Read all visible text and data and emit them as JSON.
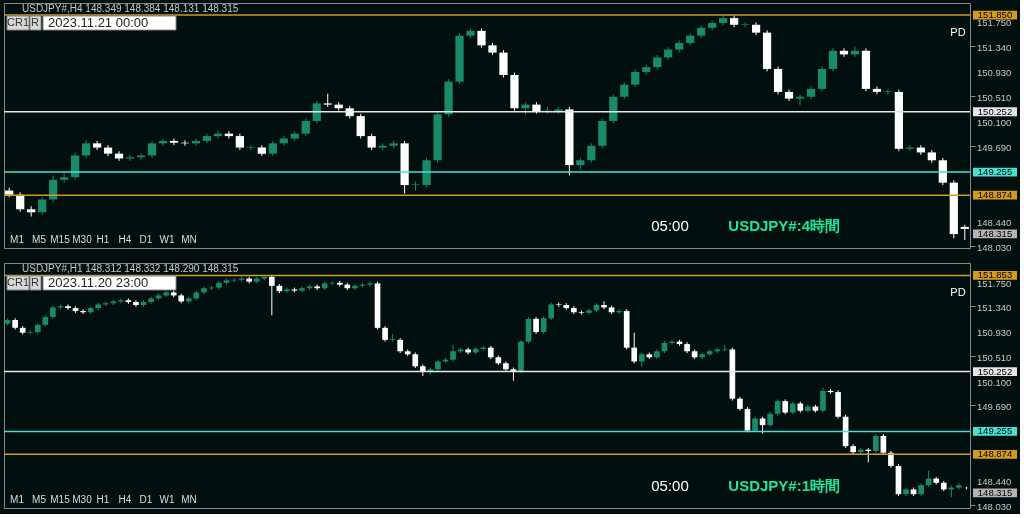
{
  "chart_data": [
    {
      "type": "candlestick",
      "title": "USDJPY#,H4 148.349 148.384 148.131 148.315",
      "annotations": [
        "CR1",
        "R",
        "2023.11.21 00:00",
        "M1",
        "M5",
        "M15",
        "M30",
        "H1",
        "H4",
        "D1",
        "W1",
        "MN",
        "PD",
        "05:00",
        "USDJPY#:4時間",
        "148.315"
      ],
      "colors": [
        "#ffffff",
        "#ffffff",
        "#ffffff",
        "#1a8a6c",
        "#1a8a6c",
        "#1a8a6c",
        "#1a8a6c",
        "#1a8a6c",
        "#ffffff",
        "#ffffff",
        "#ffffff",
        "#1a8a6c",
        "#1a8a6c",
        "#1a8a6c",
        "#1a8a6c",
        "#ffffff",
        "#ffffff",
        "#1a8a6c",
        "#1a8a6c",
        "#1a8a6c",
        "#ffffff",
        "#ffffff",
        "#1a8a6c",
        "#ffffff",
        "#1a8a6c",
        "#1a8a6c",
        "#1a8a6c",
        "#1a8a6c",
        "#1a8a6c",
        "#ffffff",
        "#ffffff",
        "#ffffff",
        "#ffffff",
        "#ffffff",
        "#1a8a6c",
        "#1a8a6c",
        "#ffffff",
        "#1a8a6c",
        "#1a8a6c",
        "#1a8a6c",
        "#1a8a6c",
        "#1a8a6c",
        "#1a8a6c",
        "#ffffff",
        "#ffffff",
        "#ffffff",
        "#ffffff",
        "#1a8a6c",
        "#ffffff",
        "#1a8a6c",
        "#1a8a6c",
        "#ffffff",
        "#1a8a6c",
        "#1a8a6c",
        "#1a8a6c",
        "#1a8a6c",
        "#1a8a6c",
        "#1a8a6c",
        "#1a8a6c",
        "#1a8a6c",
        "#1a8a6c",
        "#1a8a6c",
        "#1a8a6c",
        "#1a8a6c",
        "#1a8a6c",
        "#1a8a6c",
        "#ffffff",
        "#1a8a6c",
        "#ffffff",
        "#ffffff",
        "#ffffff",
        "#ffffff",
        "#1a8a6c",
        "#1a8a6c",
        "#1a8a6c",
        "#1a8a6c",
        "#ffffff",
        "#1a8a6c",
        "#ffffff",
        "#ffffff",
        "#1a8a6c",
        "#ffffff",
        "#1a8a6c",
        "#ffffff",
        "#ffffff",
        "#ffffff",
        "#ffffff",
        "#ffffff"
      ],
      "ylim": [
        148.0,
        152.05
      ],
      "yticks": [
        {
          "value": 151.75,
          "label": "151.750"
        },
        {
          "value": 151.34,
          "label": "151.340"
        },
        {
          "value": 150.93,
          "label": "150.930"
        },
        {
          "value": 150.51,
          "label": "150.510"
        },
        {
          "value": 150.1,
          "label": "150.100"
        },
        {
          "value": 149.69,
          "label": "149.690"
        },
        {
          "value": 148.44,
          "label": "148.440"
        },
        {
          "value": 148.03,
          "label": "148.030"
        }
      ],
      "ref_lines": [
        {
          "axis": "y",
          "value": 151.85,
          "label": "151.850",
          "color": "#d49a1e"
        },
        {
          "axis": "y",
          "value": 150.252,
          "label": "150.252",
          "color": "#e6e6e6"
        },
        {
          "axis": "y",
          "value": 149.255,
          "label": "149.255",
          "color": "#48e0d0"
        },
        {
          "axis": "y",
          "value": 148.874,
          "label": "148.874",
          "color": "#d49a1e"
        }
      ],
      "ohlc": [
        [
          148.95,
          149.0,
          148.84,
          148.88
        ],
        [
          148.88,
          148.92,
          148.6,
          148.64
        ],
        [
          148.64,
          148.69,
          148.52,
          148.59
        ],
        [
          148.59,
          148.84,
          148.55,
          148.8
        ],
        [
          148.8,
          149.2,
          148.76,
          149.13
        ],
        [
          149.13,
          149.24,
          149.08,
          149.17
        ],
        [
          149.17,
          149.58,
          149.13,
          149.53
        ],
        [
          149.53,
          149.78,
          149.49,
          149.73
        ],
        [
          149.73,
          149.77,
          149.62,
          149.66
        ],
        [
          149.66,
          149.7,
          149.52,
          149.56
        ],
        [
          149.56,
          149.6,
          149.44,
          149.48
        ],
        [
          149.48,
          149.54,
          149.44,
          149.5
        ],
        [
          149.5,
          149.57,
          149.46,
          149.53
        ],
        [
          149.53,
          149.77,
          149.49,
          149.73
        ],
        [
          149.73,
          149.81,
          149.69,
          149.77
        ],
        [
          149.77,
          149.81,
          149.7,
          149.74
        ],
        [
          149.74,
          149.78,
          149.69,
          149.73
        ],
        [
          149.73,
          149.81,
          149.69,
          149.77
        ],
        [
          149.77,
          149.89,
          149.73,
          149.85
        ],
        [
          149.85,
          149.93,
          149.81,
          149.89
        ],
        [
          149.89,
          149.93,
          149.81,
          149.85
        ],
        [
          149.85,
          149.89,
          149.62,
          149.66
        ],
        [
          149.66,
          149.7,
          149.62,
          149.67
        ],
        [
          149.66,
          149.7,
          149.52,
          149.56
        ],
        [
          149.56,
          149.77,
          149.52,
          149.73
        ],
        [
          149.73,
          149.85,
          149.69,
          149.81
        ],
        [
          149.81,
          149.93,
          149.77,
          149.89
        ],
        [
          149.89,
          150.14,
          149.85,
          150.1
        ],
        [
          150.1,
          150.43,
          150.06,
          150.39
        ],
        [
          150.39,
          150.55,
          150.33,
          150.37
        ],
        [
          150.37,
          150.41,
          150.27,
          150.31
        ],
        [
          150.31,
          150.35,
          150.14,
          150.18
        ],
        [
          150.18,
          150.22,
          149.81,
          149.85
        ],
        [
          149.85,
          149.89,
          149.62,
          149.66
        ],
        [
          149.66,
          149.73,
          149.62,
          149.69
        ],
        [
          149.69,
          149.77,
          149.65,
          149.73
        ],
        [
          149.73,
          149.77,
          148.9,
          149.04
        ],
        [
          149.04,
          149.1,
          148.95,
          149.05
        ],
        [
          149.04,
          149.49,
          149.0,
          149.45
        ],
        [
          149.45,
          150.25,
          149.41,
          150.21
        ],
        [
          150.21,
          150.79,
          150.17,
          150.75
        ],
        [
          150.75,
          151.55,
          150.71,
          151.51
        ],
        [
          151.51,
          151.63,
          151.47,
          151.59
        ],
        [
          151.59,
          151.63,
          151.31,
          151.35
        ],
        [
          151.35,
          151.39,
          151.19,
          151.23
        ],
        [
          151.23,
          151.27,
          150.82,
          150.86
        ],
        [
          150.86,
          150.9,
          150.27,
          150.31
        ],
        [
          150.31,
          150.41,
          150.2,
          150.37
        ],
        [
          150.37,
          150.41,
          150.22,
          150.26
        ],
        [
          150.26,
          150.33,
          150.22,
          150.27
        ],
        [
          150.26,
          150.33,
          150.22,
          150.29
        ],
        [
          150.29,
          150.33,
          149.2,
          149.37
        ],
        [
          149.37,
          149.49,
          149.3,
          149.45
        ],
        [
          149.45,
          149.73,
          149.41,
          149.69
        ],
        [
          149.69,
          150.14,
          149.65,
          150.1
        ],
        [
          150.1,
          150.54,
          150.06,
          150.5
        ],
        [
          150.5,
          150.74,
          150.46,
          150.7
        ],
        [
          150.7,
          150.95,
          150.66,
          150.91
        ],
        [
          150.91,
          151.03,
          150.87,
          150.99
        ],
        [
          150.99,
          151.19,
          150.95,
          151.15
        ],
        [
          151.15,
          151.32,
          151.11,
          151.28
        ],
        [
          151.28,
          151.43,
          151.24,
          151.39
        ],
        [
          151.39,
          151.55,
          151.35,
          151.51
        ],
        [
          151.51,
          151.68,
          151.47,
          151.64
        ],
        [
          151.64,
          151.76,
          151.6,
          151.72
        ],
        [
          151.72,
          151.84,
          151.68,
          151.8
        ],
        [
          151.8,
          151.84,
          151.65,
          151.69
        ],
        [
          151.69,
          151.73,
          151.65,
          151.7
        ],
        [
          151.69,
          151.73,
          151.52,
          151.56
        ],
        [
          151.56,
          151.6,
          150.92,
          150.96
        ],
        [
          150.96,
          151.0,
          150.54,
          150.58
        ],
        [
          150.58,
          150.62,
          150.43,
          150.47
        ],
        [
          150.47,
          150.54,
          150.36,
          150.5
        ],
        [
          150.5,
          150.67,
          150.46,
          150.63
        ],
        [
          150.63,
          151.0,
          150.59,
          150.96
        ],
        [
          150.96,
          151.3,
          150.92,
          151.26
        ],
        [
          151.26,
          151.3,
          151.16,
          151.2
        ],
        [
          151.2,
          151.33,
          151.16,
          151.26
        ],
        [
          151.26,
          151.3,
          150.59,
          150.63
        ],
        [
          150.63,
          150.67,
          150.54,
          150.58
        ],
        [
          150.58,
          150.62,
          150.54,
          150.59
        ],
        [
          150.58,
          150.62,
          149.6,
          149.64
        ],
        [
          149.64,
          149.7,
          149.6,
          149.66
        ],
        [
          149.66,
          149.7,
          149.54,
          149.58
        ],
        [
          149.58,
          149.62,
          149.41,
          149.45
        ],
        [
          149.45,
          149.49,
          149.04,
          149.08
        ],
        [
          149.08,
          149.12,
          148.16,
          148.23
        ],
        [
          148.349,
          148.384,
          148.131,
          148.315
        ]
      ]
    },
    {
      "type": "candlestick",
      "title": "USDJPY#,H1 148.312 148.332 148.290 148.315",
      "annotations": [
        "CR1",
        "R",
        "2023.11.20 23:00",
        "M1",
        "M5",
        "M15",
        "M30",
        "H1",
        "H4",
        "D1",
        "W1",
        "MN",
        "PD",
        "05:00",
        "USDJPY#:1時間",
        "148.315"
      ],
      "colors": [
        "#1a8a6c",
        "#ffffff",
        "#ffffff",
        "#1a8a6c",
        "#1a8a6c",
        "#1a8a6c",
        "#1a8a6c",
        "#1a8a6c",
        "#ffffff",
        "#ffffff",
        "#ffffff",
        "#1a8a6c",
        "#1a8a6c",
        "#1a8a6c",
        "#1a8a6c",
        "#1a8a6c",
        "#ffffff",
        "#ffffff",
        "#1a8a6c",
        "#1a8a6c",
        "#1a8a6c",
        "#1a8a6c",
        "#ffffff",
        "#ffffff",
        "#1a8a6c",
        "#1a8a6c",
        "#1a8a6c",
        "#1a8a6c",
        "#1a8a6c",
        "#1a8a6c",
        "#1a8a6c",
        "#1a8a6c",
        "#ffffff",
        "#1a8a6c",
        "#1a8a6c",
        "#ffffff",
        "#ffffff",
        "#1a8a6c",
        "#ffffff",
        "#1a8a6c",
        "#1a8a6c",
        "#ffffff",
        "#1a8a6c",
        "#1a8a6c",
        "#ffffff",
        "#ffffff",
        "#1a8a6c",
        "#1a8a6c",
        "#1a8a6c",
        "#ffffff",
        "#ffffff",
        "#1a8a6c",
        "#ffffff",
        "#ffffff",
        "#ffffff",
        "#ffffff",
        "#1a8a6c",
        "#1a8a6c",
        "#1a8a6c",
        "#1a8a6c",
        "#1a8a6c",
        "#ffffff",
        "#1a8a6c",
        "#1a8a6c",
        "#ffffff",
        "#ffffff",
        "#ffffff",
        "#ffffff",
        "#1a8a6c",
        "#1a8a6c",
        "#ffffff",
        "#1a8a6c",
        "#1a8a6c",
        "#ffffff",
        "#ffffff",
        "#ffffff",
        "#ffffff",
        "#1a8a6c",
        "#1a8a6c",
        "#ffffff",
        "#ffffff",
        "#1a8a6c",
        "#ffffff",
        "#ffffff",
        "#1a8a6c",
        "#ffffff",
        "#1a8a6c",
        "#1a8a6c",
        "#1a8a6c",
        "#ffffff",
        "#ffffff",
        "#ffffff",
        "#1a8a6c",
        "#1a8a6c",
        "#1a8a6c",
        "#1a8a6c",
        "#ffffff",
        "#ffffff",
        "#ffffff",
        "#1a8a6c",
        "#ffffff",
        "#1a8a6c",
        "#1a8a6c",
        "#ffffff",
        "#1a8a6c",
        "#ffffff",
        "#1a8a6c",
        "#ffffff",
        "#1a8a6c",
        "#ffffff",
        "#ffffff",
        "#ffffff",
        "#ffffff",
        "#1a8a6c",
        "#ffffff",
        "#1a8a6c",
        "#ffffff",
        "#ffffff",
        "#ffffff",
        "#1a8a6c",
        "#ffffff",
        "#1a8a6c",
        "#1a8a6c",
        "#ffffff",
        "#ffffff",
        "#1a8a6c",
        "#1a8a6c",
        "#ffffff"
      ],
      "ylim": [
        147.98,
        152.06
      ],
      "yticks": [
        {
          "value": 151.75,
          "label": "151.750"
        },
        {
          "value": 151.34,
          "label": "151.340"
        },
        {
          "value": 150.93,
          "label": "150.930"
        },
        {
          "value": 150.51,
          "label": "150.510"
        },
        {
          "value": 150.1,
          "label": "150.100"
        },
        {
          "value": 149.69,
          "label": "149.690"
        },
        {
          "value": 148.44,
          "label": "148.440"
        },
        {
          "value": 148.03,
          "label": "148.030"
        }
      ],
      "ref_lines": [
        {
          "axis": "y",
          "value": 151.853,
          "label": "151.853",
          "color": "#d49a1e"
        },
        {
          "axis": "y",
          "value": 150.252,
          "label": "150.252",
          "color": "#e6e6e6"
        },
        {
          "axis": "y",
          "value": 149.255,
          "label": "149.255",
          "color": "#48e0d0"
        },
        {
          "axis": "y",
          "value": 148.874,
          "label": "148.874",
          "color": "#d49a1e"
        }
      ],
      "ohlc": [
        [
          151.05,
          151.14,
          151.02,
          151.11
        ],
        [
          151.11,
          151.14,
          150.95,
          150.98
        ],
        [
          150.98,
          151.01,
          150.87,
          150.9
        ],
        [
          150.9,
          150.94,
          150.87,
          150.91
        ],
        [
          150.91,
          151.06,
          150.88,
          151.03
        ],
        [
          151.03,
          151.19,
          151.0,
          151.16
        ],
        [
          151.16,
          151.35,
          151.13,
          151.32
        ],
        [
          151.32,
          151.37,
          151.29,
          151.34
        ],
        [
          151.34,
          151.37,
          151.28,
          151.31
        ],
        [
          151.31,
          151.34,
          151.23,
          151.26
        ],
        [
          151.26,
          151.29,
          151.21,
          151.24
        ],
        [
          151.24,
          151.34,
          151.21,
          151.31
        ],
        [
          151.31,
          151.4,
          151.28,
          151.37
        ],
        [
          151.37,
          151.42,
          151.34,
          151.39
        ],
        [
          151.39,
          151.45,
          151.36,
          151.42
        ],
        [
          151.42,
          151.47,
          151.39,
          151.44
        ],
        [
          151.44,
          151.47,
          151.38,
          151.41
        ],
        [
          151.41,
          151.44,
          151.33,
          151.36
        ],
        [
          151.36,
          151.44,
          151.33,
          151.41
        ],
        [
          151.41,
          151.5,
          151.38,
          151.47
        ],
        [
          151.47,
          151.55,
          151.44,
          151.52
        ],
        [
          151.52,
          151.6,
          151.49,
          151.57
        ],
        [
          151.57,
          151.6,
          151.49,
          151.52
        ],
        [
          151.52,
          151.55,
          151.39,
          151.42
        ],
        [
          151.42,
          151.5,
          151.39,
          151.47
        ],
        [
          151.47,
          151.6,
          151.44,
          151.57
        ],
        [
          151.57,
          151.67,
          151.54,
          151.64
        ],
        [
          151.64,
          151.68,
          151.61,
          151.65
        ],
        [
          151.65,
          151.76,
          151.62,
          151.73
        ],
        [
          151.73,
          151.8,
          151.7,
          151.77
        ],
        [
          151.77,
          151.81,
          151.74,
          151.78
        ],
        [
          151.78,
          151.83,
          151.75,
          151.8
        ],
        [
          151.8,
          151.83,
          151.72,
          151.75
        ],
        [
          151.75,
          151.83,
          151.72,
          151.8
        ],
        [
          151.8,
          151.86,
          151.77,
          151.83
        ],
        [
          151.83,
          151.86,
          151.19,
          151.68
        ],
        [
          151.68,
          151.71,
          151.56,
          151.59
        ],
        [
          151.59,
          151.65,
          151.56,
          151.62
        ],
        [
          151.62,
          151.65,
          151.57,
          151.6
        ],
        [
          151.6,
          151.67,
          151.57,
          151.64
        ],
        [
          151.64,
          151.7,
          151.61,
          151.67
        ],
        [
          151.67,
          151.7,
          151.61,
          151.64
        ],
        [
          151.64,
          151.75,
          151.61,
          151.72
        ],
        [
          151.72,
          151.76,
          151.69,
          151.73
        ],
        [
          151.73,
          151.76,
          151.67,
          151.7
        ],
        [
          151.7,
          151.73,
          151.61,
          151.64
        ],
        [
          151.64,
          151.71,
          151.61,
          151.68
        ],
        [
          151.68,
          151.73,
          151.65,
          151.7
        ],
        [
          151.7,
          151.75,
          151.67,
          151.72
        ],
        [
          151.72,
          151.75,
          150.95,
          150.98
        ],
        [
          150.98,
          151.01,
          150.75,
          150.78
        ],
        [
          150.78,
          150.88,
          150.75,
          150.79
        ],
        [
          150.78,
          150.81,
          150.56,
          150.59
        ],
        [
          150.59,
          150.62,
          150.51,
          150.54
        ],
        [
          150.54,
          150.57,
          150.31,
          150.34
        ],
        [
          150.34,
          150.37,
          150.18,
          150.26
        ],
        [
          150.26,
          150.32,
          150.2,
          150.29
        ],
        [
          150.29,
          150.45,
          150.26,
          150.42
        ],
        [
          150.42,
          150.48,
          150.39,
          150.45
        ],
        [
          150.45,
          150.7,
          150.42,
          150.59
        ],
        [
          150.59,
          150.65,
          150.56,
          150.62
        ],
        [
          150.62,
          150.65,
          150.54,
          150.57
        ],
        [
          150.57,
          150.66,
          150.54,
          150.63
        ],
        [
          150.63,
          150.68,
          150.6,
          150.65
        ],
        [
          150.65,
          150.68,
          150.46,
          150.49
        ],
        [
          150.49,
          150.52,
          150.36,
          150.39
        ],
        [
          150.39,
          150.42,
          150.26,
          150.29
        ],
        [
          150.29,
          150.32,
          150.1,
          150.26
        ],
        [
          150.26,
          150.78,
          150.23,
          150.75
        ],
        [
          150.75,
          151.16,
          150.72,
          151.13
        ],
        [
          151.13,
          151.16,
          150.88,
          150.91
        ],
        [
          150.91,
          151.17,
          150.88,
          151.14
        ],
        [
          151.14,
          151.4,
          151.11,
          151.37
        ],
        [
          151.37,
          151.4,
          151.33,
          151.36
        ],
        [
          151.36,
          151.39,
          151.28,
          151.31
        ],
        [
          151.31,
          151.34,
          151.21,
          151.24
        ],
        [
          151.24,
          151.27,
          151.2,
          151.23
        ],
        [
          151.23,
          151.3,
          151.2,
          151.27
        ],
        [
          151.27,
          151.39,
          151.24,
          151.36
        ],
        [
          151.36,
          151.42,
          151.29,
          151.32
        ],
        [
          151.32,
          151.35,
          151.21,
          151.24
        ],
        [
          151.24,
          151.29,
          151.21,
          151.26
        ],
        [
          151.26,
          151.29,
          150.62,
          150.65
        ],
        [
          150.65,
          150.9,
          150.39,
          150.42
        ],
        [
          150.42,
          150.57,
          150.33,
          150.54
        ],
        [
          150.54,
          150.57,
          150.46,
          150.49
        ],
        [
          150.49,
          150.62,
          150.46,
          150.59
        ],
        [
          150.59,
          150.76,
          150.56,
          150.73
        ],
        [
          150.73,
          150.78,
          150.7,
          150.75
        ],
        [
          150.75,
          150.78,
          150.68,
          150.71
        ],
        [
          150.71,
          150.74,
          150.56,
          150.59
        ],
        [
          150.59,
          150.62,
          150.46,
          150.49
        ],
        [
          150.49,
          150.57,
          150.46,
          150.54
        ],
        [
          150.54,
          150.62,
          150.51,
          150.59
        ],
        [
          150.59,
          150.65,
          150.56,
          150.62
        ],
        [
          150.62,
          150.69,
          150.59,
          150.63
        ],
        [
          150.62,
          150.65,
          149.77,
          149.8
        ],
        [
          149.8,
          149.83,
          149.6,
          149.63
        ],
        [
          149.63,
          149.66,
          149.24,
          149.27
        ],
        [
          149.27,
          149.5,
          149.24,
          149.47
        ],
        [
          149.47,
          149.5,
          149.22,
          149.36
        ],
        [
          149.36,
          149.58,
          149.33,
          149.55
        ],
        [
          149.55,
          149.79,
          149.52,
          149.76
        ],
        [
          149.76,
          149.79,
          149.54,
          149.57
        ],
        [
          149.57,
          149.75,
          149.54,
          149.72
        ],
        [
          149.72,
          149.75,
          149.57,
          149.6
        ],
        [
          149.6,
          149.7,
          149.57,
          149.67
        ],
        [
          149.67,
          149.7,
          149.57,
          149.6
        ],
        [
          149.6,
          149.98,
          149.57,
          149.93
        ],
        [
          149.93,
          149.96,
          149.88,
          149.91
        ],
        [
          149.91,
          149.94,
          149.47,
          149.5
        ],
        [
          149.5,
          149.53,
          148.98,
          149.01
        ],
        [
          149.01,
          149.04,
          148.88,
          148.91
        ],
        [
          148.91,
          148.98,
          148.88,
          148.95
        ],
        [
          148.95,
          148.98,
          148.74,
          148.93
        ],
        [
          148.93,
          149.21,
          148.9,
          149.18
        ],
        [
          149.18,
          149.21,
          148.87,
          148.9
        ],
        [
          148.9,
          148.93,
          148.65,
          148.68
        ],
        [
          148.68,
          148.71,
          148.18,
          148.21
        ],
        [
          148.21,
          148.32,
          148.18,
          148.29
        ],
        [
          148.29,
          148.32,
          148.18,
          148.21
        ],
        [
          148.21,
          148.39,
          148.18,
          148.36
        ],
        [
          148.36,
          148.6,
          148.33,
          148.47
        ],
        [
          148.47,
          148.5,
          148.37,
          148.4
        ],
        [
          148.4,
          148.43,
          148.26,
          148.29
        ],
        [
          148.29,
          148.35,
          148.16,
          148.32
        ],
        [
          148.32,
          148.39,
          148.29,
          148.36
        ],
        [
          148.312,
          148.332,
          148.29,
          148.315
        ]
      ]
    }
  ]
}
